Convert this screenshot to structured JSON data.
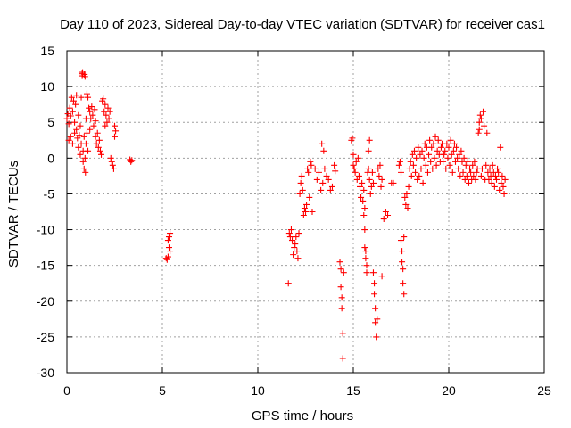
{
  "chart_data": {
    "type": "scatter",
    "title": "Day 110 of 2023, Sidereal Day-to-day VTEC variation (SDTVAR) for receiver cas1",
    "xlabel": "GPS time / hours",
    "ylabel": "SDTVAR / TECUs",
    "xlim": [
      0,
      25
    ],
    "ylim": [
      -30,
      15
    ],
    "xticks": [
      0,
      5,
      10,
      15,
      20,
      25
    ],
    "yticks": [
      15,
      10,
      5,
      0,
      -5,
      -10,
      -15,
      -20,
      -25,
      -30
    ],
    "xtick_labels": [
      "0",
      "5",
      "10",
      "15",
      "20",
      "25"
    ],
    "ytick_labels": [
      "15",
      "10",
      "5",
      "0",
      "-5",
      "-10",
      "-15",
      "-20",
      "-25",
      "-30"
    ],
    "grid": true,
    "marker": "+",
    "marker_color": "#ff0000",
    "series": [
      {
        "name": "SDTVAR",
        "points": [
          [
            0.0,
            5.5
          ],
          [
            0.05,
            6.2
          ],
          [
            0.1,
            4.8
          ],
          [
            0.1,
            2.5
          ],
          [
            0.15,
            7.0
          ],
          [
            0.2,
            5.9
          ],
          [
            0.2,
            3.0
          ],
          [
            0.25,
            8.5
          ],
          [
            0.3,
            6.5
          ],
          [
            0.3,
            2.0
          ],
          [
            0.35,
            8.0
          ],
          [
            0.4,
            5.0
          ],
          [
            0.4,
            3.5
          ],
          [
            0.45,
            7.5
          ],
          [
            0.5,
            4.0
          ],
          [
            0.5,
            8.8
          ],
          [
            0.55,
            2.8
          ],
          [
            0.6,
            6.0
          ],
          [
            0.6,
            1.5
          ],
          [
            0.65,
            3.2
          ],
          [
            0.7,
            0.5
          ],
          [
            0.7,
            4.5
          ],
          [
            0.75,
            8.5
          ],
          [
            0.75,
            2.0
          ],
          [
            0.8,
            11.8
          ],
          [
            0.8,
            11.5
          ],
          [
            0.82,
            12.0
          ],
          [
            0.85,
            -0.5
          ],
          [
            0.85,
            1.0
          ],
          [
            0.9,
            3.0
          ],
          [
            0.9,
            -1.5
          ],
          [
            0.92,
            11.7
          ],
          [
            0.95,
            11.4
          ],
          [
            0.95,
            0.0
          ],
          [
            0.97,
            -2.0
          ],
          [
            1.0,
            2.0
          ],
          [
            1.0,
            5.5
          ],
          [
            1.05,
            9.0
          ],
          [
            1.05,
            3.5
          ],
          [
            1.1,
            1.0
          ],
          [
            1.1,
            8.5
          ],
          [
            1.15,
            7.0
          ],
          [
            1.2,
            4.0
          ],
          [
            1.2,
            6.5
          ],
          [
            1.25,
            5.5
          ],
          [
            1.3,
            7.2
          ],
          [
            1.35,
            6.0
          ],
          [
            1.4,
            4.5
          ],
          [
            1.45,
            6.8
          ],
          [
            1.5,
            5.2
          ],
          [
            1.5,
            3.0
          ],
          [
            1.55,
            2.0
          ],
          [
            1.6,
            3.5
          ],
          [
            1.65,
            1.5
          ],
          [
            1.7,
            2.5
          ],
          [
            1.75,
            1.0
          ],
          [
            1.8,
            0.5
          ],
          [
            1.85,
            8.0
          ],
          [
            1.9,
            8.3
          ],
          [
            1.95,
            6.5
          ],
          [
            2.0,
            7.5
          ],
          [
            2.0,
            4.5
          ],
          [
            2.05,
            6.0
          ],
          [
            2.1,
            5.0
          ],
          [
            2.15,
            7.0
          ],
          [
            2.2,
            5.5
          ],
          [
            2.25,
            6.5
          ],
          [
            2.3,
            0.0
          ],
          [
            2.35,
            -0.5
          ],
          [
            2.4,
            -1.0
          ],
          [
            2.45,
            -1.5
          ],
          [
            2.5,
            4.5
          ],
          [
            2.5,
            3.0
          ],
          [
            2.55,
            3.8
          ],
          [
            3.3,
            -0.2
          ],
          [
            3.35,
            -0.5
          ],
          [
            3.4,
            -0.3
          ],
          [
            5.2,
            -14.0
          ],
          [
            5.25,
            -14.2
          ],
          [
            5.3,
            -13.8
          ],
          [
            5.3,
            -11.5
          ],
          [
            5.35,
            -12.5
          ],
          [
            5.35,
            -11.0
          ],
          [
            5.4,
            -10.5
          ],
          [
            5.4,
            -13.0
          ],
          [
            11.6,
            -17.5
          ],
          [
            11.65,
            -10.5
          ],
          [
            11.7,
            -11.0
          ],
          [
            11.75,
            -10.0
          ],
          [
            11.8,
            -11.5
          ],
          [
            11.85,
            -13.5
          ],
          [
            11.9,
            -12.5
          ],
          [
            11.95,
            -12.0
          ],
          [
            12.0,
            -11.0
          ],
          [
            12.05,
            -13.0
          ],
          [
            12.1,
            -14.0
          ],
          [
            12.15,
            -10.5
          ],
          [
            12.2,
            -5.0
          ],
          [
            12.25,
            -3.5
          ],
          [
            12.3,
            -2.5
          ],
          [
            12.35,
            -4.5
          ],
          [
            12.4,
            -8.0
          ],
          [
            12.45,
            -7.0
          ],
          [
            12.5,
            -7.5
          ],
          [
            12.55,
            -6.5
          ],
          [
            12.6,
            -1.5
          ],
          [
            12.65,
            -2.0
          ],
          [
            12.7,
            -5.5
          ],
          [
            12.75,
            -0.5
          ],
          [
            12.8,
            -1.0
          ],
          [
            12.85,
            -7.5
          ],
          [
            13.0,
            -1.5
          ],
          [
            13.1,
            -3.0
          ],
          [
            13.2,
            -2.0
          ],
          [
            13.3,
            -4.5
          ],
          [
            13.35,
            2.0
          ],
          [
            13.4,
            -3.5
          ],
          [
            13.45,
            1.0
          ],
          [
            13.5,
            -1.5
          ],
          [
            13.6,
            -2.5
          ],
          [
            13.7,
            -3.0
          ],
          [
            13.8,
            -4.5
          ],
          [
            13.9,
            -4.0
          ],
          [
            14.0,
            -1.0
          ],
          [
            14.05,
            -1.8
          ],
          [
            14.3,
            -14.5
          ],
          [
            14.35,
            -15.5
          ],
          [
            14.35,
            -18.0
          ],
          [
            14.4,
            -19.5
          ],
          [
            14.4,
            -21.0
          ],
          [
            14.45,
            -24.5
          ],
          [
            14.45,
            -28.0
          ],
          [
            14.5,
            -16.0
          ],
          [
            14.9,
            2.5
          ],
          [
            14.95,
            2.8
          ],
          [
            15.0,
            0.5
          ],
          [
            15.0,
            -1.0
          ],
          [
            15.05,
            -1.5
          ],
          [
            15.1,
            -2.0
          ],
          [
            15.15,
            -0.5
          ],
          [
            15.2,
            -3.0
          ],
          [
            15.25,
            0.0
          ],
          [
            15.3,
            -2.5
          ],
          [
            15.35,
            -4.0
          ],
          [
            15.4,
            -5.5
          ],
          [
            15.45,
            -3.5
          ],
          [
            15.5,
            -6.0
          ],
          [
            15.55,
            -4.5
          ],
          [
            15.6,
            -7.0
          ],
          [
            15.55,
            -8.0
          ],
          [
            15.6,
            -10.0
          ],
          [
            15.6,
            -12.5
          ],
          [
            15.65,
            -13.0
          ],
          [
            15.65,
            -14.0
          ],
          [
            15.7,
            -15.0
          ],
          [
            15.7,
            -16.0
          ],
          [
            15.75,
            -2.0
          ],
          [
            15.8,
            1.0
          ],
          [
            15.8,
            -1.5
          ],
          [
            15.85,
            2.5
          ],
          [
            15.85,
            -3.0
          ],
          [
            15.9,
            -5.0
          ],
          [
            15.95,
            -4.0
          ],
          [
            16.0,
            -2.0
          ],
          [
            16.05,
            -3.5
          ],
          [
            16.05,
            -16.0
          ],
          [
            16.1,
            -17.5
          ],
          [
            16.1,
            -19.0
          ],
          [
            16.15,
            -21.0
          ],
          [
            16.15,
            -23.0
          ],
          [
            16.2,
            -25.0
          ],
          [
            16.25,
            -22.5
          ],
          [
            16.3,
            -1.5
          ],
          [
            16.35,
            -2.5
          ],
          [
            16.4,
            -1.0
          ],
          [
            16.45,
            -4.0
          ],
          [
            16.5,
            -3.0
          ],
          [
            16.5,
            -16.5
          ],
          [
            16.6,
            -8.5
          ],
          [
            16.7,
            -7.5
          ],
          [
            16.8,
            -8.0
          ],
          [
            17.0,
            -3.5
          ],
          [
            17.1,
            -3.5
          ],
          [
            17.4,
            -1.0
          ],
          [
            17.45,
            -0.5
          ],
          [
            17.5,
            -2.0
          ],
          [
            17.5,
            -11.5
          ],
          [
            17.55,
            -13.0
          ],
          [
            17.55,
            -14.5
          ],
          [
            17.6,
            -15.5
          ],
          [
            17.6,
            -17.5
          ],
          [
            17.65,
            -19.0
          ],
          [
            17.65,
            -11.0
          ],
          [
            17.7,
            -5.5
          ],
          [
            17.75,
            -6.5
          ],
          [
            17.8,
            -5.0
          ],
          [
            17.85,
            -7.0
          ],
          [
            17.9,
            -4.0
          ],
          [
            17.95,
            -1.5
          ],
          [
            18.0,
            -0.5
          ],
          [
            18.05,
            -2.5
          ],
          [
            18.1,
            0.5
          ],
          [
            18.15,
            -1.0
          ],
          [
            18.2,
            1.0
          ],
          [
            18.25,
            -2.0
          ],
          [
            18.3,
            0.0
          ],
          [
            18.35,
            -3.0
          ],
          [
            18.4,
            1.5
          ],
          [
            18.45,
            -2.5
          ],
          [
            18.5,
            0.5
          ],
          [
            18.55,
            -1.5
          ],
          [
            18.6,
            1.0
          ],
          [
            18.65,
            -3.5
          ],
          [
            18.7,
            0.0
          ],
          [
            18.75,
            2.0
          ],
          [
            18.8,
            -1.0
          ],
          [
            18.85,
            1.5
          ],
          [
            18.9,
            -2.0
          ],
          [
            18.95,
            0.5
          ],
          [
            19.0,
            2.5
          ],
          [
            19.05,
            -0.5
          ],
          [
            19.1,
            1.5
          ],
          [
            19.15,
            -1.5
          ],
          [
            19.2,
            2.0
          ],
          [
            19.25,
            0.0
          ],
          [
            19.3,
            3.0
          ],
          [
            19.35,
            -1.0
          ],
          [
            19.4,
            1.0
          ],
          [
            19.45,
            2.5
          ],
          [
            19.5,
            0.5
          ],
          [
            19.55,
            -0.5
          ],
          [
            19.6,
            1.5
          ],
          [
            19.65,
            2.0
          ],
          [
            19.7,
            -0.5
          ],
          [
            19.75,
            0.5
          ],
          [
            19.8,
            1.0
          ],
          [
            19.85,
            -1.5
          ],
          [
            19.9,
            2.0
          ],
          [
            19.95,
            0.0
          ],
          [
            20.0,
            1.5
          ],
          [
            20.05,
            -1.0
          ],
          [
            20.1,
            2.5
          ],
          [
            20.15,
            0.5
          ],
          [
            20.2,
            -2.0
          ],
          [
            20.25,
            1.0
          ],
          [
            20.3,
            2.0
          ],
          [
            20.35,
            -0.5
          ],
          [
            20.4,
            1.5
          ],
          [
            20.45,
            0.0
          ],
          [
            20.5,
            -1.5
          ],
          [
            20.55,
            0.5
          ],
          [
            20.6,
            -2.5
          ],
          [
            20.65,
            1.0
          ],
          [
            20.7,
            -0.5
          ],
          [
            20.75,
            -2.0
          ],
          [
            20.8,
            0.0
          ],
          [
            20.85,
            -3.0
          ],
          [
            20.9,
            -1.0
          ],
          [
            20.95,
            -2.5
          ],
          [
            21.0,
            -0.5
          ],
          [
            21.05,
            -3.5
          ],
          [
            21.1,
            -1.5
          ],
          [
            21.15,
            -2.0
          ],
          [
            21.2,
            -3.0
          ],
          [
            21.25,
            -1.0
          ],
          [
            21.3,
            -2.5
          ],
          [
            21.35,
            -0.5
          ],
          [
            21.4,
            -3.0
          ],
          [
            21.45,
            -2.0
          ],
          [
            21.5,
            -1.5
          ],
          [
            21.55,
            3.5
          ],
          [
            21.6,
            5.0
          ],
          [
            21.6,
            4.0
          ],
          [
            21.65,
            6.0
          ],
          [
            21.7,
            5.5
          ],
          [
            21.7,
            -2.5
          ],
          [
            21.75,
            -1.5
          ],
          [
            21.8,
            6.5
          ],
          [
            21.85,
            4.5
          ],
          [
            21.9,
            -3.0
          ],
          [
            21.95,
            -1.0
          ],
          [
            22.0,
            3.5
          ],
          [
            22.05,
            -2.0
          ],
          [
            22.1,
            -3.0
          ],
          [
            22.15,
            -1.5
          ],
          [
            22.2,
            -2.5
          ],
          [
            22.25,
            -3.5
          ],
          [
            22.3,
            -1.0
          ],
          [
            22.35,
            -2.0
          ],
          [
            22.4,
            -4.0
          ],
          [
            22.45,
            -2.5
          ],
          [
            22.5,
            -3.0
          ],
          [
            22.55,
            -1.5
          ],
          [
            22.6,
            -2.0
          ],
          [
            22.65,
            -4.5
          ],
          [
            22.7,
            1.5
          ],
          [
            22.75,
            -3.5
          ],
          [
            22.8,
            -2.5
          ],
          [
            22.85,
            -4.0
          ],
          [
            22.9,
            -5.0
          ],
          [
            22.95,
            -3.0
          ]
        ]
      }
    ]
  }
}
